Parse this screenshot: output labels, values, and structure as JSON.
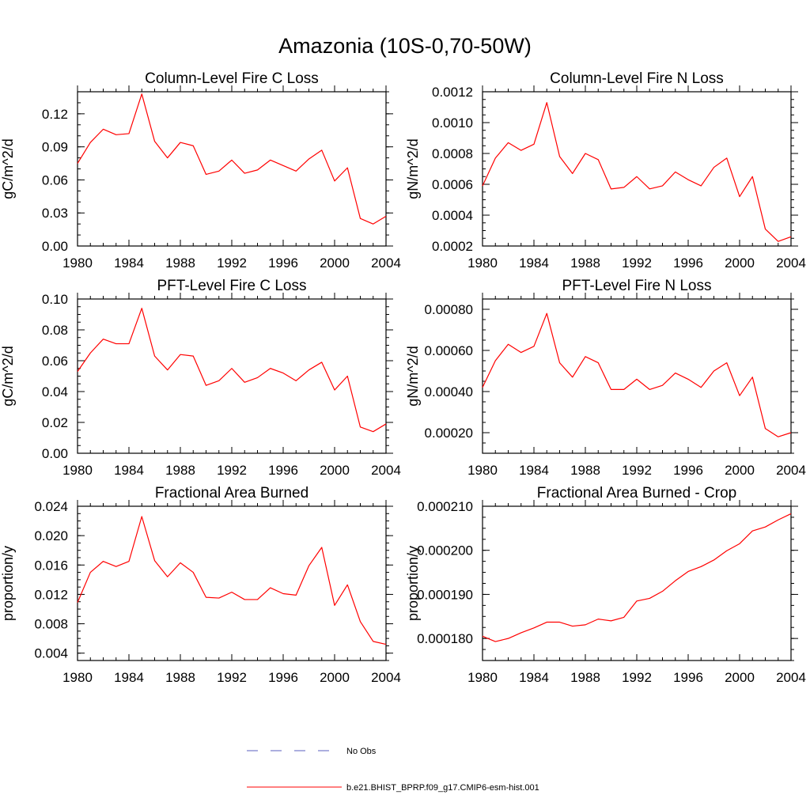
{
  "figure_title": "Amazonia (10S-0,70-50W)",
  "legend": [
    {
      "label": "No Obs",
      "color": "#5a5fbf",
      "dash": true
    },
    {
      "label": "b.e21.BHIST_BPRP.f09_g17.CMIP6-esm-hist.001",
      "color": "#ff0000",
      "dash": false
    }
  ],
  "chart_data": [
    {
      "type": "line",
      "title": "Column-Level Fire C Loss",
      "ylabel": "gC/m^2/d",
      "xlim": [
        1980,
        2004
      ],
      "ylim": [
        0.0,
        0.14
      ],
      "x_ticks": [
        1980,
        1984,
        1988,
        1992,
        1996,
        2000,
        2004
      ],
      "y_ticks": [
        0.0,
        0.03,
        0.06,
        0.09,
        0.12
      ],
      "y_tick_labels": [
        "0.00",
        "0.03",
        "0.06",
        "0.09",
        "0.12"
      ],
      "y_minor_step": 0.01,
      "series": [
        {
          "color": "#ff0000",
          "x": [
            1980,
            1981,
            1982,
            1983,
            1984,
            1985,
            1986,
            1987,
            1988,
            1989,
            1990,
            1991,
            1992,
            1993,
            1994,
            1995,
            1996,
            1997,
            1998,
            1999,
            2000,
            2001,
            2002,
            2003,
            2004
          ],
          "y": [
            0.075,
            0.094,
            0.106,
            0.101,
            0.102,
            0.138,
            0.095,
            0.08,
            0.094,
            0.091,
            0.065,
            0.068,
            0.078,
            0.066,
            0.069,
            0.078,
            0.073,
            0.068,
            0.079,
            0.087,
            0.059,
            0.071,
            0.025,
            0.02,
            0.027
          ]
        }
      ]
    },
    {
      "type": "line",
      "title": "Column-Level Fire N Loss",
      "ylabel": "gN/m^2/d",
      "xlim": [
        1980,
        2004
      ],
      "ylim": [
        0.0002,
        0.0012
      ],
      "x_ticks": [
        1980,
        1984,
        1988,
        1992,
        1996,
        2000,
        2004
      ],
      "y_ticks": [
        0.0002,
        0.0004,
        0.0006,
        0.0008,
        0.001,
        0.0012
      ],
      "y_tick_labels": [
        "0.0002",
        "0.0004",
        "0.0006",
        "0.0008",
        "0.0010",
        "0.0012"
      ],
      "y_minor_step": 5e-05,
      "series": [
        {
          "color": "#ff0000",
          "x": [
            1980,
            1981,
            1982,
            1983,
            1984,
            1985,
            1986,
            1987,
            1988,
            1989,
            1990,
            1991,
            1992,
            1993,
            1994,
            1995,
            1996,
            1997,
            1998,
            1999,
            2000,
            2001,
            2002,
            2003,
            2004
          ],
          "y": [
            0.00059,
            0.00077,
            0.00087,
            0.00082,
            0.00086,
            0.00113,
            0.00078,
            0.00067,
            0.0008,
            0.00076,
            0.00057,
            0.00058,
            0.00065,
            0.00057,
            0.00059,
            0.00068,
            0.00063,
            0.00059,
            0.00071,
            0.00077,
            0.00052,
            0.00065,
            0.00031,
            0.00023,
            0.00026
          ]
        }
      ]
    },
    {
      "type": "line",
      "title": "PFT-Level Fire C Loss",
      "ylabel": "gC/m^2/d",
      "xlim": [
        1980,
        2004
      ],
      "ylim": [
        0.0,
        0.1
      ],
      "x_ticks": [
        1980,
        1984,
        1988,
        1992,
        1996,
        2000,
        2004
      ],
      "y_ticks": [
        0.0,
        0.02,
        0.04,
        0.06,
        0.08,
        0.1
      ],
      "y_tick_labels": [
        "0.00",
        "0.02",
        "0.04",
        "0.06",
        "0.08",
        "0.10"
      ],
      "y_minor_step": 0.005,
      "series": [
        {
          "color": "#ff0000",
          "x": [
            1980,
            1981,
            1982,
            1983,
            1984,
            1985,
            1986,
            1987,
            1988,
            1989,
            1990,
            1991,
            1992,
            1993,
            1994,
            1995,
            1996,
            1997,
            1998,
            1999,
            2000,
            2001,
            2002,
            2003,
            2004
          ],
          "y": [
            0.053,
            0.065,
            0.074,
            0.071,
            0.071,
            0.094,
            0.063,
            0.054,
            0.064,
            0.063,
            0.044,
            0.047,
            0.055,
            0.046,
            0.049,
            0.055,
            0.052,
            0.047,
            0.054,
            0.059,
            0.041,
            0.05,
            0.017,
            0.014,
            0.019
          ]
        }
      ]
    },
    {
      "type": "line",
      "title": "PFT-Level Fire N Loss",
      "ylabel": "gN/m^2/d",
      "xlim": [
        1980,
        2004
      ],
      "ylim": [
        0.0001,
        0.00085
      ],
      "x_ticks": [
        1980,
        1984,
        1988,
        1992,
        1996,
        2000,
        2004
      ],
      "y_ticks": [
        0.0002,
        0.0004,
        0.0006,
        0.0008
      ],
      "y_tick_labels": [
        "0.00020",
        "0.00040",
        "0.00060",
        "0.00080"
      ],
      "y_minor_step": 5e-05,
      "series": [
        {
          "color": "#ff0000",
          "x": [
            1980,
            1981,
            1982,
            1983,
            1984,
            1985,
            1986,
            1987,
            1988,
            1989,
            1990,
            1991,
            1992,
            1993,
            1994,
            1995,
            1996,
            1997,
            1998,
            1999,
            2000,
            2001,
            2002,
            2003,
            2004
          ],
          "y": [
            0.00042,
            0.00055,
            0.00063,
            0.00059,
            0.00062,
            0.00078,
            0.00054,
            0.00047,
            0.00057,
            0.00054,
            0.00041,
            0.00041,
            0.00046,
            0.00041,
            0.00043,
            0.00049,
            0.00046,
            0.00042,
            0.0005,
            0.00054,
            0.00038,
            0.00047,
            0.00022,
            0.00018,
            0.0002
          ]
        }
      ]
    },
    {
      "type": "line",
      "title": "Fractional Area Burned",
      "ylabel": "proportion/y",
      "xlim": [
        1980,
        2004
      ],
      "ylim": [
        0.003,
        0.024
      ],
      "x_ticks": [
        1980,
        1984,
        1988,
        1992,
        1996,
        2000,
        2004
      ],
      "y_ticks": [
        0.004,
        0.008,
        0.012,
        0.016,
        0.02,
        0.024
      ],
      "y_tick_labels": [
        "0.004",
        "0.008",
        "0.012",
        "0.016",
        "0.020",
        "0.024"
      ],
      "y_minor_step": 0.001,
      "series": [
        {
          "color": "#ff0000",
          "x": [
            1980,
            1981,
            1982,
            1983,
            1984,
            1985,
            1986,
            1987,
            1988,
            1989,
            1990,
            1991,
            1992,
            1993,
            1994,
            1995,
            1996,
            1997,
            1998,
            1999,
            2000,
            2001,
            2002,
            2003,
            2004
          ],
          "y": [
            0.0109,
            0.015,
            0.0165,
            0.0158,
            0.0165,
            0.0226,
            0.0166,
            0.0144,
            0.0163,
            0.015,
            0.0116,
            0.0115,
            0.0123,
            0.0113,
            0.0113,
            0.0129,
            0.0121,
            0.0119,
            0.0159,
            0.0184,
            0.0105,
            0.0133,
            0.0083,
            0.0056,
            0.0052
          ]
        }
      ]
    },
    {
      "type": "line",
      "title": "Fractional Area Burned - Crop",
      "ylabel": "proportion/y",
      "xlim": [
        1980,
        2004
      ],
      "ylim": [
        0.000175,
        0.00021
      ],
      "x_ticks": [
        1980,
        1984,
        1988,
        1992,
        1996,
        2000,
        2004
      ],
      "y_ticks": [
        0.00018,
        0.00019,
        0.0002,
        0.00021
      ],
      "y_tick_labels": [
        "0.000180",
        "0.000190",
        "0.000200",
        "0.000210"
      ],
      "y_minor_step": 2.5e-06,
      "series": [
        {
          "color": "#ff0000",
          "x": [
            1980,
            1981,
            1982,
            1983,
            1984,
            1985,
            1986,
            1987,
            1988,
            1989,
            1990,
            1991,
            1992,
            1993,
            1994,
            1995,
            1996,
            1997,
            1998,
            1999,
            2000,
            2001,
            2002,
            2003,
            2004
          ],
          "y": [
            0.0001805,
            0.0001793,
            0.00018,
            0.0001813,
            0.0001824,
            0.0001837,
            0.0001837,
            0.0001828,
            0.0001831,
            0.0001844,
            0.000184,
            0.0001848,
            0.0001885,
            0.0001891,
            0.0001907,
            0.0001931,
            0.0001952,
            0.0001963,
            0.0001978,
            0.0001999,
            0.0002015,
            0.0002044,
            0.0002053,
            0.0002069,
            0.0002083
          ]
        }
      ]
    }
  ]
}
